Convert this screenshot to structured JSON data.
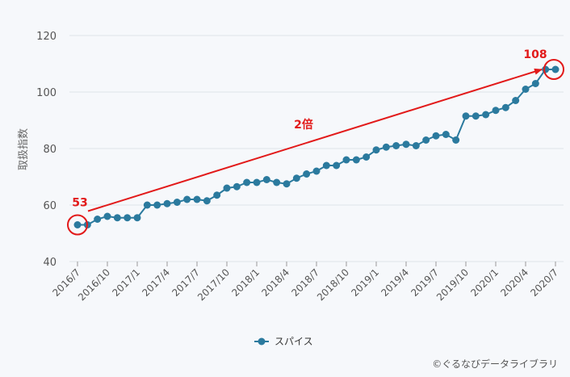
{
  "chart_data": {
    "type": "line",
    "ylabel": "取扱指数",
    "ylim": [
      40,
      120
    ],
    "yticks": [
      40,
      60,
      80,
      100,
      120
    ],
    "grid": "horizontal",
    "legend_position": "bottom-center",
    "x_tick_labels": [
      "2016/7",
      "2016/10",
      "2017/1",
      "2017/4",
      "2017/7",
      "2017/10",
      "2018/1",
      "2018/4",
      "2018/7",
      "2018/10",
      "2019/1",
      "2019/4",
      "2019/7",
      "2019/10",
      "2020/1",
      "2020/4",
      "2020/7"
    ],
    "x": [
      "2016/7",
      "2016/8",
      "2016/9",
      "2016/10",
      "2016/11",
      "2016/12",
      "2017/1",
      "2017/2",
      "2017/3",
      "2017/4",
      "2017/5",
      "2017/6",
      "2017/7",
      "2017/8",
      "2017/9",
      "2017/10",
      "2017/11",
      "2017/12",
      "2018/1",
      "2018/2",
      "2018/3",
      "2018/4",
      "2018/5",
      "2018/6",
      "2018/7",
      "2018/8",
      "2018/9",
      "2018/10",
      "2018/11",
      "2018/12",
      "2019/1",
      "2019/2",
      "2019/3",
      "2019/4",
      "2019/5",
      "2019/6",
      "2019/7",
      "2019/8",
      "2019/9",
      "2019/10",
      "2019/11",
      "2019/12",
      "2020/1",
      "2020/2",
      "2020/3",
      "2020/4",
      "2020/5",
      "2020/6",
      "2020/7"
    ],
    "series": [
      {
        "name": "スパイス",
        "color": "#2b7a9e",
        "values": [
          53,
          53,
          55,
          56,
          55.5,
          55.5,
          55.5,
          60,
          60,
          60.5,
          61,
          62,
          62,
          61.5,
          63.5,
          66,
          66.5,
          68,
          68,
          69,
          68,
          67.5,
          69.5,
          71,
          72,
          74,
          74,
          76,
          76,
          77,
          79.5,
          80.5,
          81,
          81.5,
          81,
          83,
          84.5,
          85,
          83,
          91.5,
          91.5,
          92,
          93.5,
          94.5,
          97,
          101,
          103,
          108,
          108
        ]
      }
    ],
    "annotations": [
      {
        "text": "53",
        "x": "2016/7",
        "y": 53
      },
      {
        "text": "108",
        "x": "2020/7",
        "y": 108
      },
      {
        "text": "2倍"
      }
    ],
    "annotation_color": "#e21a1a"
  },
  "copyright": "©ぐるなびデータライブラリ"
}
